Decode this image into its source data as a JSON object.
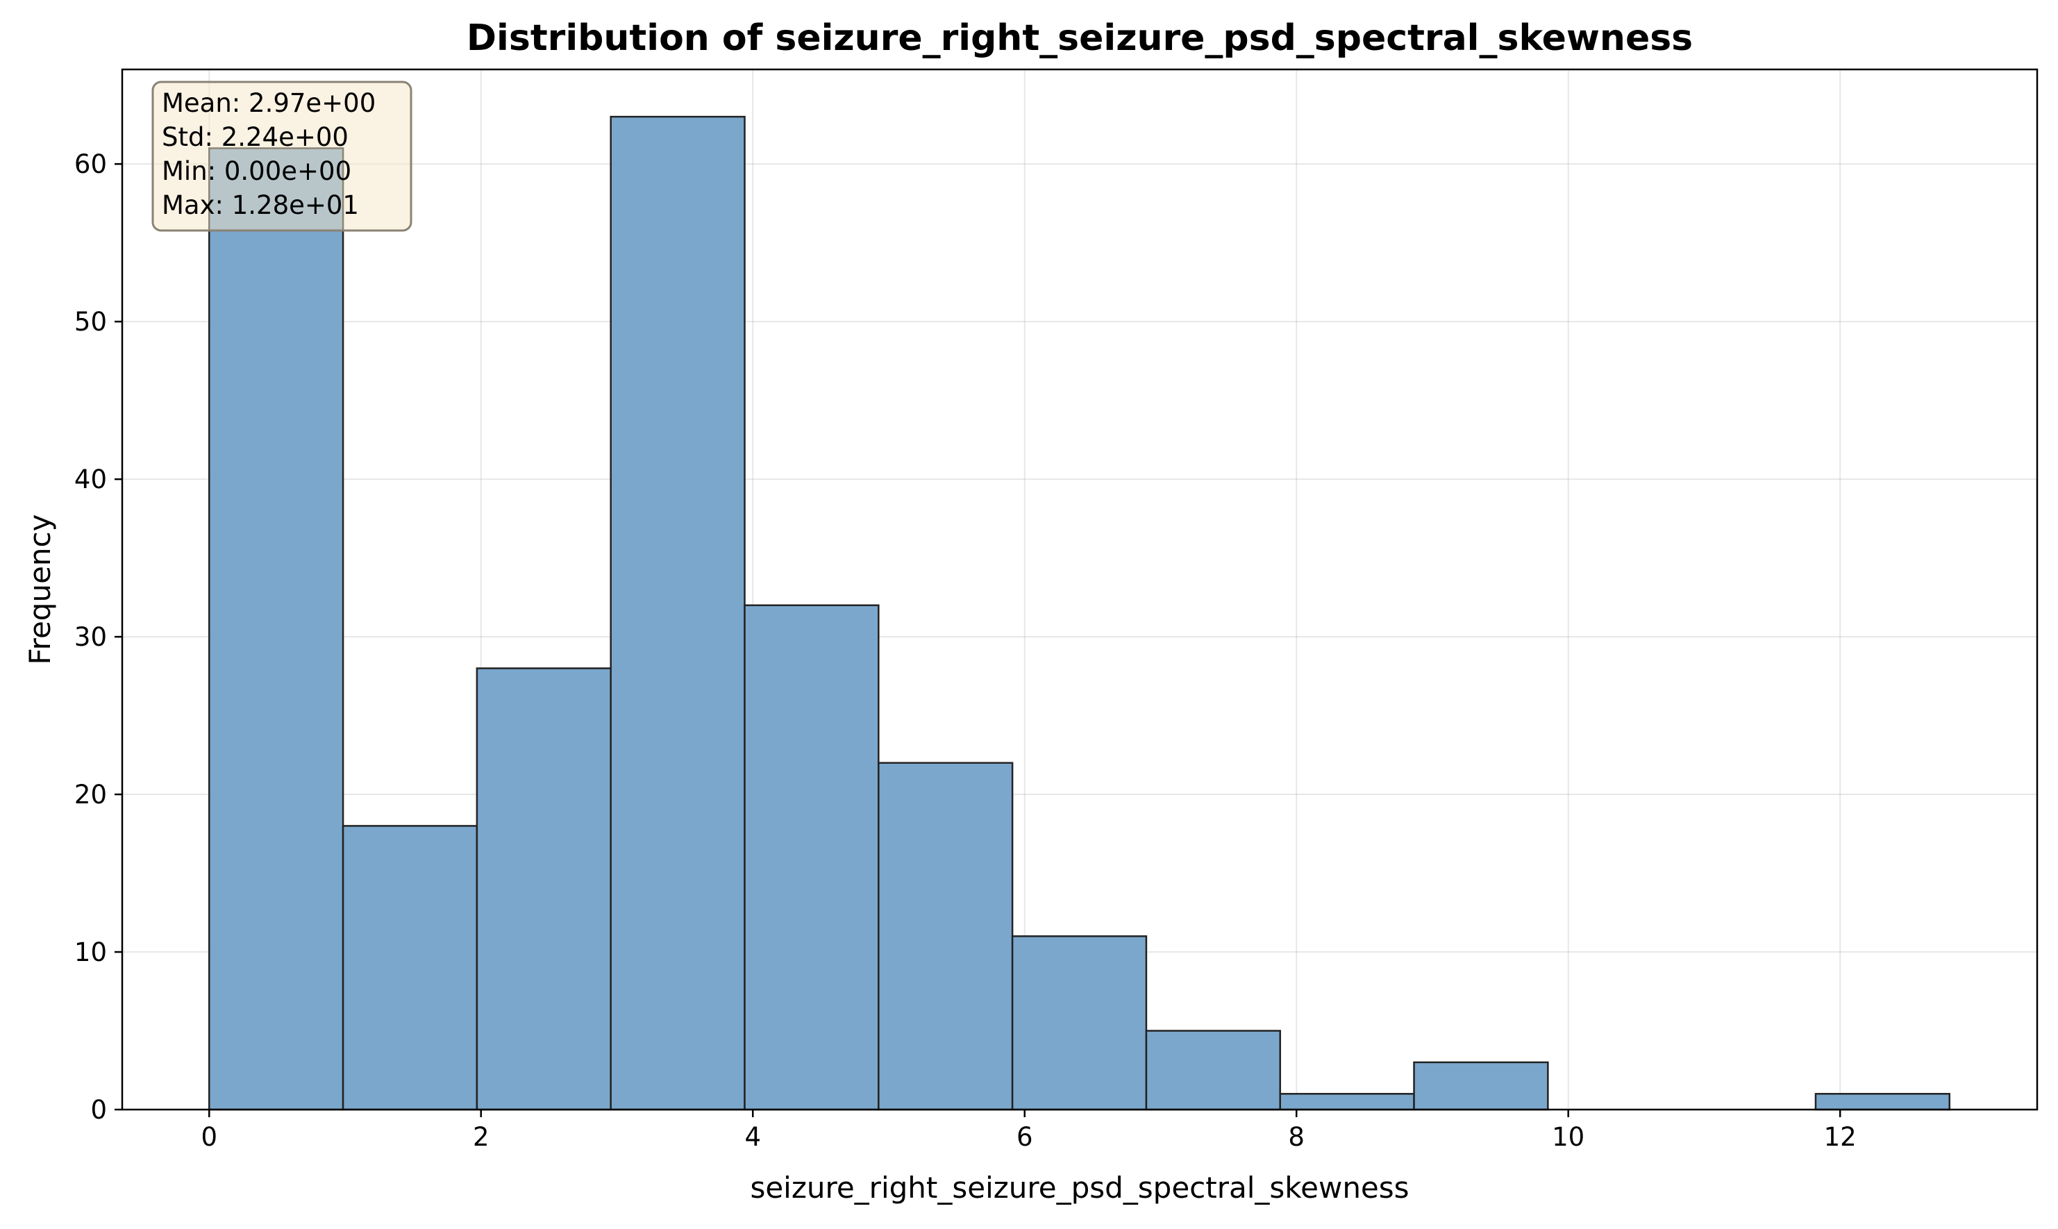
{
  "chart_data": {
    "type": "bar",
    "title": "Distribution of seizure_right_seizure_psd_spectral_skewness",
    "xlabel": "seizure_right_seizure_psd_spectral_skewness",
    "ylabel": "Frequency",
    "bin_edges": [
      0.0,
      0.985,
      1.97,
      2.955,
      3.94,
      4.925,
      5.91,
      6.895,
      7.88,
      8.865,
      9.85,
      10.835,
      11.82,
      12.805
    ],
    "values": [
      61,
      18,
      28,
      63,
      32,
      22,
      11,
      5,
      1,
      3,
      0,
      0,
      1
    ],
    "xlim": [
      -0.64,
      13.45
    ],
    "ylim": [
      0,
      66
    ],
    "xticks": [
      0,
      2,
      4,
      6,
      8,
      10,
      12
    ],
    "xtick_labels": [
      "0",
      "2",
      "4",
      "6",
      "8",
      "10",
      "12"
    ],
    "yticks": [
      0,
      10,
      20,
      30,
      40,
      50,
      60
    ],
    "ytick_labels": [
      "0",
      "10",
      "20",
      "30",
      "40",
      "50",
      "60"
    ],
    "grid": true,
    "bar_color": "#7ba7cc",
    "bar_edge_color": "#222222",
    "stats_box": {
      "lines": [
        "Mean: 2.97e+00",
        "Std: 2.24e+00",
        "Min: 0.00e+00",
        "Max: 1.28e+01"
      ],
      "background": "#f5e6c8",
      "border": "#8a8273"
    }
  }
}
